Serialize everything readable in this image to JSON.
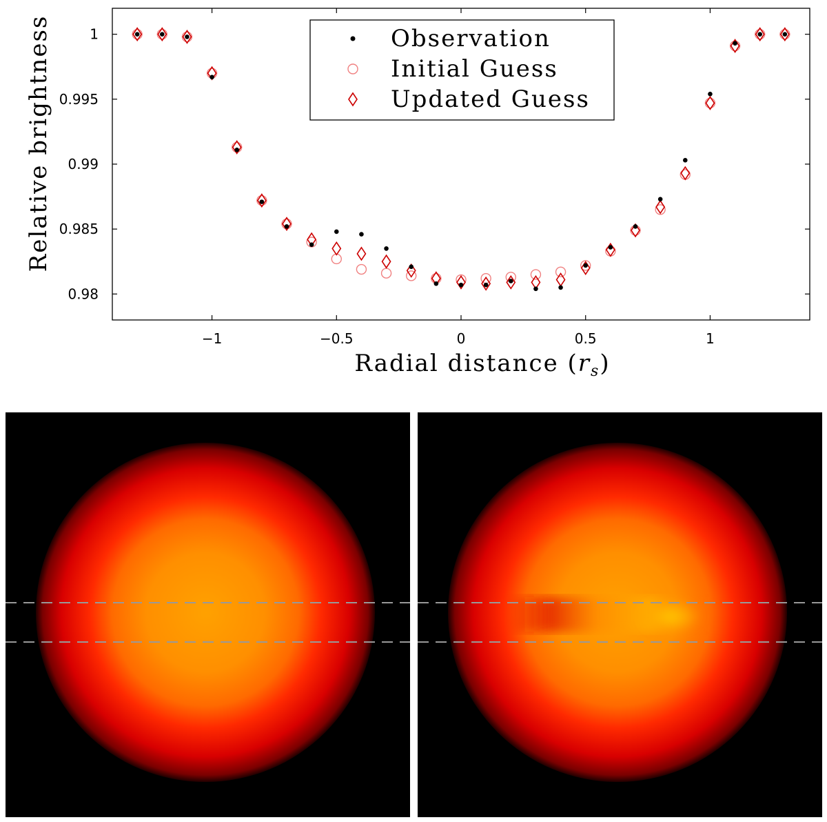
{
  "chart_data": {
    "type": "scatter",
    "xlabel": "Radial distance",
    "xlabel_unit_base": "r",
    "xlabel_unit_sub": "s",
    "ylabel": "Relative brightness",
    "xlim": [
      -1.4,
      1.4
    ],
    "ylim": [
      0.978,
      1.002
    ],
    "x_ticks": [
      -1,
      -0.5,
      0,
      0.5,
      1
    ],
    "x_tick_labels": [
      "−1",
      "−0.5",
      "0",
      "0.5",
      "1"
    ],
    "y_ticks": [
      0.98,
      0.985,
      0.99,
      0.995,
      1
    ],
    "y_tick_labels": [
      "0.98",
      "0.985",
      "0.99",
      "0.995",
      "1"
    ],
    "legend_position": "top-center",
    "x": [
      -1.3,
      -1.2,
      -1.1,
      -1.0,
      -0.9,
      -0.8,
      -0.7,
      -0.6,
      -0.5,
      -0.4,
      -0.3,
      -0.2,
      -0.1,
      0.0,
      0.1,
      0.2,
      0.3,
      0.4,
      0.5,
      0.6,
      0.7,
      0.8,
      0.9,
      1.0,
      1.1,
      1.2,
      1.3
    ],
    "series": [
      {
        "name": "Observation",
        "marker": "dot",
        "color": "#000000",
        "values": [
          1.0,
          1.0,
          0.9998,
          0.9967,
          0.9911,
          0.9871,
          0.9852,
          0.9838,
          0.9848,
          0.9846,
          0.9835,
          0.9821,
          0.9808,
          0.9807,
          0.9807,
          0.981,
          0.9804,
          0.9805,
          0.9822,
          0.9836,
          0.9852,
          0.9873,
          0.9903,
          0.9954,
          0.9993,
          1.0,
          1.0
        ]
      },
      {
        "name": "Initial Guess",
        "marker": "circle",
        "color": "#f08080",
        "values": [
          1.0,
          1.0,
          0.9998,
          0.997,
          0.9913,
          0.9872,
          0.9854,
          0.984,
          0.9827,
          0.9819,
          0.9816,
          0.9814,
          0.9812,
          0.9811,
          0.9812,
          0.9813,
          0.9815,
          0.9817,
          0.9822,
          0.9833,
          0.9849,
          0.9865,
          0.9892,
          0.9947,
          0.9991,
          1.0,
          1.0
        ]
      },
      {
        "name": "Updated Guess",
        "marker": "diamond",
        "color": "#cc0000",
        "values": [
          1.0,
          1.0,
          0.9998,
          0.997,
          0.9913,
          0.9872,
          0.9854,
          0.9842,
          0.9835,
          0.9831,
          0.9825,
          0.9818,
          0.9812,
          0.9809,
          0.9808,
          0.9809,
          0.9809,
          0.9811,
          0.982,
          0.9834,
          0.9849,
          0.9867,
          0.9893,
          0.9947,
          0.9991,
          1.0,
          1.0
        ]
      }
    ]
  },
  "images": [
    {
      "name": "initial-guess-disk",
      "hot_spot": false
    },
    {
      "name": "updated-guess-disk",
      "hot_spot": true
    }
  ]
}
